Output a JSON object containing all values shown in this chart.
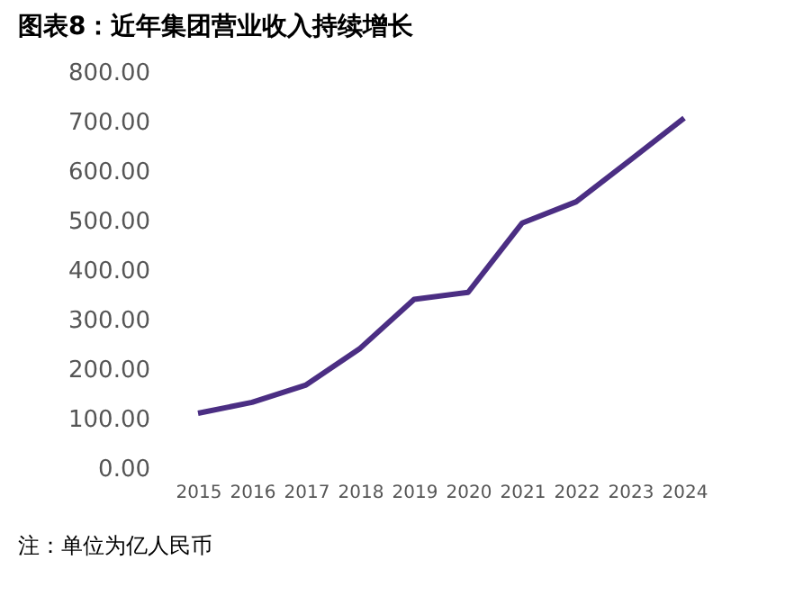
{
  "chart_data": {
    "type": "line",
    "title": "图表8：近年集团营业收入持续增长",
    "categories": [
      "2015",
      "2016",
      "2017",
      "2018",
      "2019",
      "2020",
      "2021",
      "2022",
      "2023",
      "2024"
    ],
    "series": [
      {
        "color": "#4b2e83",
        "values": [
          111,
          133,
          168,
          242,
          341,
          355,
          495,
          538,
          622,
          707
        ]
      }
    ],
    "ylim": [
      0,
      800
    ],
    "yticks": [
      {
        "value": 0,
        "label": "0.00"
      },
      {
        "value": 100,
        "label": "100.00"
      },
      {
        "value": 200,
        "label": "200.00"
      },
      {
        "value": 300,
        "label": "300.00"
      },
      {
        "value": 400,
        "label": "400.00"
      },
      {
        "value": 500,
        "label": "500.00"
      },
      {
        "value": 600,
        "label": "600.00"
      },
      {
        "value": 700,
        "label": "700.00"
      },
      {
        "value": 800,
        "label": "800.00"
      }
    ],
    "grid": false,
    "marker": "none",
    "line_style": "solid",
    "annotations": [
      "注：单位为亿人民币"
    ]
  }
}
